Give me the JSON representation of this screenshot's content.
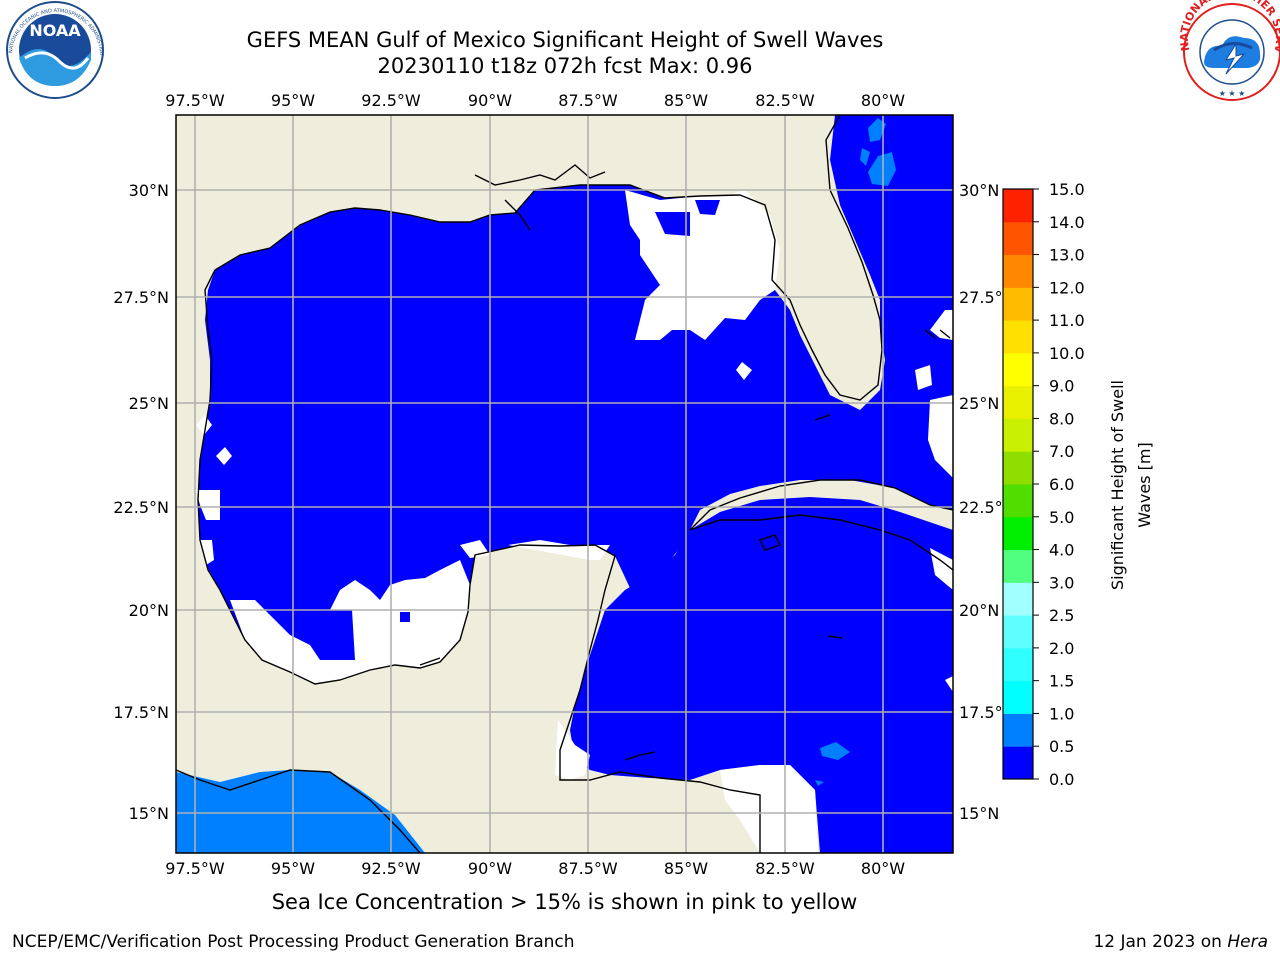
{
  "header": {
    "title_line1": "GEFS MEAN Gulf of Mexico Significant Height of Swell Waves",
    "title_line2": "20230110 t18z 072h fcst   Max: 0.96"
  },
  "logos": {
    "noaa_text": "NOAA",
    "noaa_ring_text": "NATIONAL OCEANIC AND ATMOSPHERIC ADMINISTRATION · U.S. DEPARTMENT OF COMMERCE",
    "nws_ring_text": "NATIONAL WEATHER SERVICE"
  },
  "map": {
    "lon_labels": [
      "97.5°W",
      "95°W",
      "92.5°W",
      "90°W",
      "87.5°W",
      "85°W",
      "82.5°W",
      "80°W"
    ],
    "lat_labels": [
      "30°N",
      "27.5°N",
      "25°N",
      "22.5°N",
      "20°N",
      "17.5°N",
      "15°N"
    ],
    "colors": {
      "land": "#efeedd",
      "ocean": "#0000ff",
      "swell_0_5": "#0080ff",
      "no_data": "#ffffff",
      "grid": "#b0b0b0"
    }
  },
  "colorbar": {
    "label": "Significant Height of Swell Waves [m]",
    "ticks": [
      "0.0",
      "0.5",
      "1.0",
      "1.5",
      "2.0",
      "2.5",
      "3.0",
      "4.0",
      "5.0",
      "6.0",
      "7.0",
      "8.0",
      "9.0",
      "10.0",
      "11.0",
      "12.0",
      "13.0",
      "14.0",
      "15.0"
    ],
    "colors": [
      "#0000ff",
      "#0080ff",
      "#00ffff",
      "#30ffff",
      "#60ffff",
      "#a0ffff",
      "#50ff80",
      "#00ee00",
      "#50dd00",
      "#90dd00",
      "#c8f000",
      "#e8f000",
      "#ffff00",
      "#ffe000",
      "#ffbb00",
      "#ff8800",
      "#ff5500",
      "#ff2200",
      "#ff0000"
    ]
  },
  "footer": {
    "note": "Sea Ice Concentration > 15% is shown in pink to yellow",
    "credit": "NCEP/EMC/Verification Post Processing Product Generation Branch",
    "date": "12 Jan 2023 on",
    "machine": "Hera"
  }
}
